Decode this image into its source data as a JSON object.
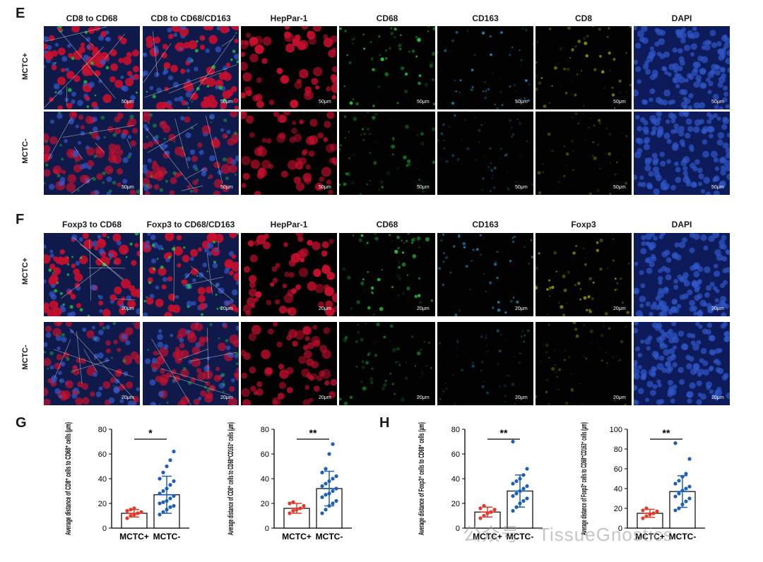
{
  "panels": {
    "E": {
      "letter": "E",
      "columns": [
        "CD8 to CD68",
        "CD8 to CD68/CD163",
        "HepPar-1",
        "CD68",
        "CD163",
        "CD8",
        "DAPI"
      ],
      "rows": [
        "MCTC+",
        "MCTC-"
      ],
      "scale": "50μm"
    },
    "F": {
      "letter": "F",
      "columns": [
        "Foxp3 to CD68",
        "Foxp3 to CD68/CD163",
        "HepPar-1",
        "CD68",
        "CD163",
        "Foxp3",
        "DAPI"
      ],
      "rows": [
        "MCTC+",
        "MCTC-"
      ],
      "scale": "20μm"
    },
    "G": {
      "letter": "G"
    },
    "H": {
      "letter": "H"
    }
  },
  "colors": {
    "merge_red": "#c8102e",
    "merge_blue": "#1d3a8a",
    "green": "#22c23a",
    "cyan": "#2a9fd6",
    "yellow": "#d4d400",
    "red_bar": "#e03a2a",
    "blue_bar": "#1f5fb5"
  },
  "chart_data": [
    {
      "type": "bar",
      "ylabel": "Average distance of CD8⁺ cells to CD68⁺ cells (μm)",
      "categories": [
        "MCTC+",
        "MCTC-"
      ],
      "values": [
        12,
        27
      ],
      "error": [
        3,
        15
      ],
      "ylim": [
        0,
        80
      ],
      "yticks": [
        "0",
        "20",
        "40",
        "60",
        "80"
      ],
      "significance": "*",
      "points": [
        [
          8,
          10,
          11,
          12,
          13,
          14,
          15,
          16
        ],
        [
          11,
          13,
          15,
          17,
          18,
          20,
          21,
          22,
          24,
          26,
          28,
          30,
          32,
          35,
          38,
          40,
          45,
          50,
          55,
          62
        ]
      ]
    },
    {
      "type": "bar",
      "ylabel": "Average distance of CD8⁺ cells to CD68⁺CD163⁺ cells (μm)",
      "categories": [
        "MCTC+",
        "MCTC-"
      ],
      "values": [
        16,
        32
      ],
      "error": [
        4,
        14
      ],
      "ylim": [
        0,
        80
      ],
      "yticks": [
        "0",
        "20",
        "40",
        "60",
        "80"
      ],
      "significance": "**",
      "points": [
        [
          12,
          14,
          15,
          16,
          18,
          20,
          21
        ],
        [
          12,
          15,
          18,
          20,
          22,
          25,
          27,
          28,
          30,
          32,
          34,
          36,
          38,
          40,
          42,
          45,
          48,
          60,
          68
        ]
      ]
    },
    {
      "type": "bar",
      "ylabel": "Average distance of Foxp3⁺ cells to CD68⁺ cells (μm)",
      "categories": [
        "MCTC+",
        "MCTC-"
      ],
      "values": [
        13,
        30
      ],
      "error": [
        4,
        13
      ],
      "ylim": [
        0,
        80
      ],
      "yticks": [
        "0",
        "20",
        "40",
        "60",
        "80"
      ],
      "significance": "**",
      "points": [
        [
          8,
          10,
          12,
          13,
          15,
          16,
          18
        ],
        [
          14,
          17,
          20,
          22,
          24,
          26,
          28,
          30,
          32,
          34,
          36,
          38,
          40,
          43,
          48,
          70
        ]
      ]
    },
    {
      "type": "bar",
      "ylabel": "Average distance of Foxp3⁺ cells to CD68⁺CD163⁺ cells (μm)",
      "categories": [
        "MCTC+",
        "MCTC-"
      ],
      "values": [
        15,
        37
      ],
      "error": [
        4,
        16
      ],
      "ylim": [
        0,
        100
      ],
      "yticks": [
        "0",
        "20",
        "40",
        "60",
        "80",
        "100"
      ],
      "significance": "**",
      "points": [
        [
          10,
          12,
          14,
          15,
          17,
          18,
          20
        ],
        [
          18,
          20,
          24,
          27,
          30,
          32,
          35,
          38,
          40,
          42,
          45,
          48,
          52,
          55,
          70,
          86
        ]
      ]
    }
  ],
  "watermark": "公众号 · TissueGnostics"
}
